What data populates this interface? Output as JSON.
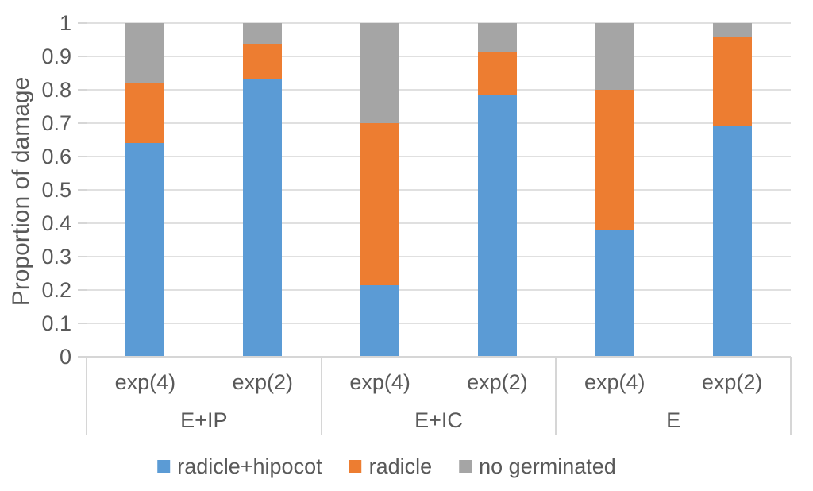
{
  "chart_data": {
    "type": "bar",
    "stacked": true,
    "title": "",
    "xlabel": "",
    "ylabel": "Proportion of damage",
    "ylim": [
      0,
      1
    ],
    "ytick_labels": [
      "1",
      "0.9",
      "0.8",
      "0.7",
      "0.6",
      "0.5",
      "0.4",
      "0.3",
      "0.2",
      "0.1",
      "0"
    ],
    "grid": "horizontal",
    "legend_position": "bottom",
    "categories": [
      "exp(4)",
      "exp(2)",
      "exp(4)",
      "exp(2)",
      "exp(4)",
      "exp(2)"
    ],
    "groups": [
      {
        "label": "E+IP",
        "span": 2
      },
      {
        "label": "E+IC",
        "span": 2
      },
      {
        "label": "E",
        "span": 2
      }
    ],
    "series": [
      {
        "name": "radicle+hipocot",
        "color": "#5b9bd5",
        "values": [
          0.64,
          0.83,
          0.215,
          0.785,
          0.38,
          0.69
        ]
      },
      {
        "name": "radicle",
        "color": "#ed7d31",
        "values": [
          0.18,
          0.105,
          0.485,
          0.13,
          0.42,
          0.27
        ]
      },
      {
        "name": "no germinated",
        "color": "#a5a5a5",
        "values": [
          0.18,
          0.065,
          0.3,
          0.085,
          0.2,
          0.04
        ]
      }
    ]
  }
}
